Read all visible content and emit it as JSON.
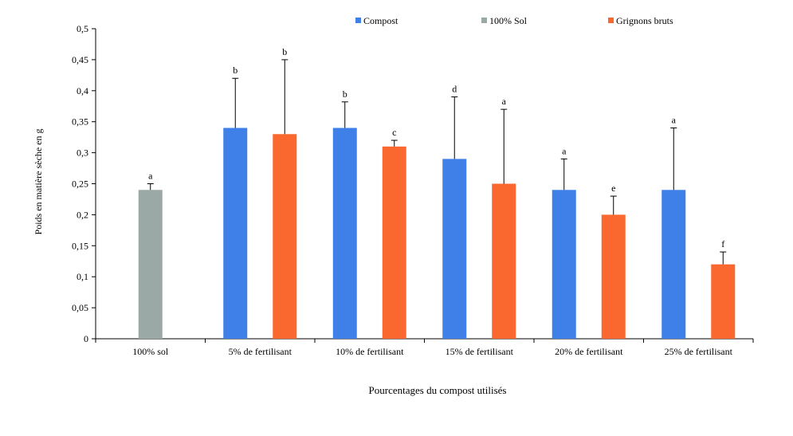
{
  "chart_data": {
    "type": "bar",
    "xlabel": "Pourcentages du compost utilisés",
    "ylabel": "Poids en matière sèche en g",
    "ylim": [
      0,
      0.5
    ],
    "yticks": [
      0,
      0.05,
      0.1,
      0.15,
      0.2,
      0.25,
      0.3,
      0.35,
      0.4,
      0.45,
      0.5
    ],
    "ytick_labels": [
      "0",
      "0,05",
      "0,1",
      "0,15",
      "0,2",
      "0,25",
      "0,3",
      "0,35",
      "0,4",
      "0,45",
      "0,5"
    ],
    "categories": [
      "100% sol",
      "5% de fertilisant",
      "10% de fertilisant",
      "15% de fertilisant",
      "20% de fertilisant",
      "25% de fertilisant"
    ],
    "legend_position": "top",
    "grid": false,
    "series": [
      {
        "name": "Compost",
        "color": "#3f80e8",
        "values": [
          null,
          0.34,
          0.34,
          0.29,
          0.24,
          0.24
        ],
        "errors": [
          null,
          0.08,
          0.042,
          0.1,
          0.05,
          0.1
        ],
        "labels": [
          null,
          "b",
          "b",
          "d",
          "a",
          "a"
        ]
      },
      {
        "name": "100% Sol",
        "color": "#9aa9a5",
        "values": [
          0.24,
          null,
          null,
          null,
          null,
          null
        ],
        "errors": [
          0.01,
          null,
          null,
          null,
          null,
          null
        ],
        "labels": [
          "a",
          null,
          null,
          null,
          null,
          null
        ]
      },
      {
        "name": "Grignons bruts",
        "color": "#fa6830",
        "values": [
          null,
          0.33,
          0.31,
          0.25,
          0.2,
          0.12
        ],
        "errors": [
          null,
          0.12,
          0.01,
          0.12,
          0.03,
          0.02
        ],
        "labels": [
          null,
          "b",
          "c",
          "a",
          "e",
          "f"
        ]
      }
    ]
  }
}
